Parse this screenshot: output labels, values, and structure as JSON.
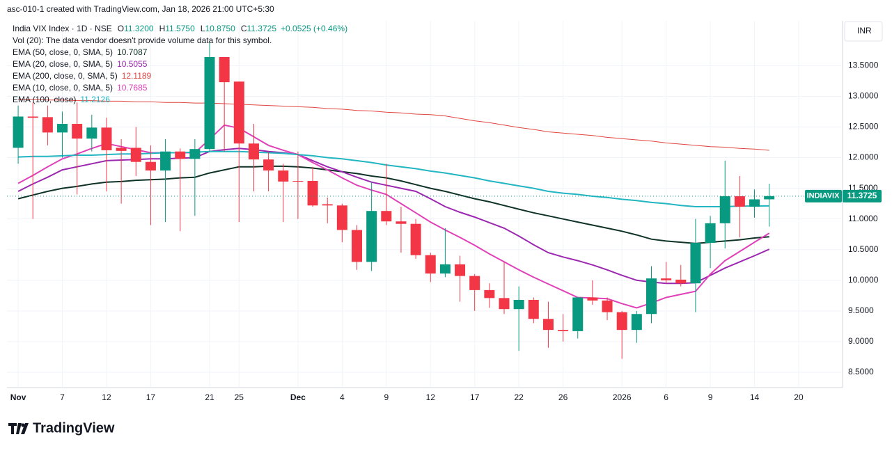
{
  "chart_data": {
    "type": "candlestick",
    "watermark": "asc-010-1 created with TradingView.com, Jan 18, 2026 21:00 UTC+5:30",
    "symbol": "India VIX Index · 1D · NSE",
    "quote": [
      {
        "label": "O",
        "value": "11.3200"
      },
      {
        "label": "H",
        "value": "11.5750"
      },
      {
        "label": "L",
        "value": "10.8750"
      },
      {
        "label": "C",
        "value": "11.3725"
      }
    ],
    "change": "+0.0525 (+0.46%)",
    "volume_note": "Vol (20): The data vendor doesn't provide volume data for this symbol.",
    "currency": "INR",
    "ticker": "INDIAVIX",
    "last_label": "11.3725",
    "brand": "TradingView",
    "up_color": "#089981",
    "down_color": "#f23645",
    "xlim": [
      -0.76,
      55.98
    ],
    "xticks": [
      {
        "value": 0,
        "label": "Nov"
      },
      {
        "value": 3,
        "label": "7"
      },
      {
        "value": 6,
        "label": "12"
      },
      {
        "value": 9,
        "label": "17"
      },
      {
        "value": 13,
        "label": "21"
      },
      {
        "value": 15,
        "label": "25"
      },
      {
        "value": 19,
        "label": "Dec"
      },
      {
        "value": 22,
        "label": "4"
      },
      {
        "value": 25,
        "label": "9"
      },
      {
        "value": 28,
        "label": "12"
      },
      {
        "value": 31,
        "label": "17"
      },
      {
        "value": 34,
        "label": "22"
      },
      {
        "value": 37,
        "label": "26"
      },
      {
        "value": 41,
        "label": "2026"
      },
      {
        "value": 44,
        "label": "6"
      },
      {
        "value": 47,
        "label": "9"
      },
      {
        "value": 50,
        "label": "14"
      },
      {
        "value": 53,
        "label": "20"
      }
    ],
    "ylim": [
      8.25,
      14.23
    ],
    "yticks": [
      {
        "value": 8.5,
        "label": "8.5000"
      },
      {
        "value": 9,
        "label": "9.0000"
      },
      {
        "value": 9.5,
        "label": "9.5000"
      },
      {
        "value": 10,
        "label": "10.0000"
      },
      {
        "value": 10.5,
        "label": "10.5000"
      },
      {
        "value": 11,
        "label": "11.0000"
      },
      {
        "value": 11.5,
        "label": "11.5000"
      },
      {
        "value": 12,
        "label": "12.0000"
      },
      {
        "value": 12.5,
        "label": "12.5000"
      },
      {
        "value": 13,
        "label": "13.0000"
      },
      {
        "value": 13.5,
        "label": "13.5000"
      }
    ],
    "grid": true,
    "open": [
      12.16,
      12.67,
      12.66,
      12.41,
      12.55,
      12.31,
      12.49,
      12.16,
      12.16,
      11.93,
      11.79,
      12.1,
      11.98,
      12.14,
      13.64,
      13.24,
      12.23,
      11.97,
      11.79,
      11.62,
      11.62,
      11.24,
      11.22,
      10.82,
      10.3,
      11.13,
      10.96,
      10.92,
      10.41,
      10.11,
      10.26,
      10.07,
      9.84,
      9.71,
      9.53,
      9.68,
      9.37,
      9.19,
      9.17,
      9.72,
      9.67,
      9.48,
      9.19,
      9.45,
      10.03,
      10.01,
      9.95,
      10.61,
      10.93,
      11.37,
      11.2,
      11.32
    ],
    "high": [
      12.85,
      12.9,
      12.85,
      12.75,
      12.9,
      12.7,
      12.65,
      12.3,
      12.5,
      12.2,
      12.3,
      12.15,
      12.3,
      13.9,
      13.64,
      13.24,
      12.55,
      12.1,
      11.9,
      12.1,
      11.85,
      11.35,
      11.25,
      10.9,
      11.6,
      11.9,
      11.2,
      11.0,
      10.45,
      10.85,
      10.4,
      10.1,
      9.95,
      10.3,
      9.9,
      9.72,
      9.65,
      9.45,
      9.73,
      10.0,
      9.72,
      9.5,
      9.5,
      10.23,
      10.3,
      10.25,
      11.0,
      11.05,
      11.95,
      11.7,
      11.48,
      11.575
    ],
    "low": [
      11.9,
      11.0,
      12.2,
      12.0,
      11.4,
      12.1,
      11.45,
      11.25,
      11.7,
      10.9,
      10.95,
      10.8,
      11.05,
      12.1,
      12.1,
      10.95,
      11.45,
      11.45,
      10.95,
      11.0,
      11.2,
      10.93,
      10.62,
      10.17,
      10.15,
      10.9,
      10.45,
      10.35,
      9.97,
      10.05,
      9.65,
      9.5,
      9.55,
      9.45,
      8.85,
      9.3,
      8.9,
      9.0,
      9.05,
      9.6,
      9.35,
      8.72,
      8.98,
      9.3,
      9.95,
      9.9,
      9.48,
      10.2,
      10.52,
      10.7,
      11.02,
      10.875
    ],
    "close": [
      12.67,
      12.65,
      12.41,
      12.55,
      12.31,
      12.49,
      12.12,
      12.11,
      11.93,
      11.79,
      12.1,
      11.98,
      12.14,
      13.64,
      13.23,
      12.23,
      11.97,
      11.79,
      11.61,
      11.61,
      11.22,
      11.22,
      10.82,
      10.3,
      11.13,
      10.96,
      10.92,
      10.41,
      10.11,
      10.26,
      10.07,
      9.84,
      9.71,
      9.53,
      9.68,
      9.37,
      9.19,
      9.17,
      9.72,
      9.67,
      9.48,
      9.19,
      9.45,
      10.03,
      10.0,
      9.95,
      10.61,
      10.93,
      11.37,
      11.2,
      11.32,
      11.3725
    ],
    "series": [
      {
        "name": "EMA (50, close, 0, SMA, 5)",
        "legend_value": "10.7087",
        "color": "#0f3326",
        "width": 2,
        "values": [
          11.33,
          11.39,
          11.45,
          11.5,
          11.53,
          11.57,
          11.6,
          11.61,
          11.63,
          11.64,
          11.65,
          11.67,
          11.68,
          11.75,
          11.8,
          11.85,
          11.85,
          11.86,
          11.86,
          11.85,
          11.83,
          11.8,
          11.77,
          11.74,
          11.7,
          11.67,
          11.62,
          11.56,
          11.5,
          11.45,
          11.39,
          11.33,
          11.28,
          11.22,
          11.16,
          11.1,
          11.05,
          11.0,
          10.95,
          10.9,
          10.85,
          10.8,
          10.74,
          10.67,
          10.64,
          10.62,
          10.6,
          10.62,
          10.64,
          10.66,
          10.69,
          10.7087
        ]
      },
      {
        "name": "EMA (20, close, 0, SMA, 5)",
        "legend_value": "10.5055",
        "color": "#9c27b0",
        "width": 2,
        "values": [
          11.45,
          11.57,
          11.68,
          11.8,
          11.85,
          11.9,
          11.95,
          11.96,
          11.97,
          11.98,
          11.98,
          11.99,
          12.0,
          12.1,
          12.13,
          12.15,
          12.13,
          12.1,
          12.08,
          12.05,
          11.95,
          11.85,
          11.77,
          11.68,
          11.6,
          11.55,
          11.5,
          11.45,
          11.33,
          11.2,
          11.11,
          11.03,
          10.94,
          10.85,
          10.72,
          10.58,
          10.45,
          10.38,
          10.32,
          10.25,
          10.17,
          10.08,
          10.0,
          9.97,
          9.95,
          9.95,
          9.96,
          10.08,
          10.2,
          10.3,
          10.4,
          10.5055
        ]
      },
      {
        "name": "EMA (200, close, 0, SMA, 5)",
        "legend_value": "12.1189",
        "color": "#e0453f",
        "width": 1,
        "values": [
          12.95,
          12.95,
          12.94,
          12.94,
          12.93,
          12.93,
          12.92,
          12.92,
          12.91,
          12.91,
          12.9,
          12.9,
          12.89,
          12.89,
          12.88,
          12.87,
          12.86,
          12.85,
          12.84,
          12.83,
          12.82,
          12.8,
          12.79,
          12.77,
          12.76,
          12.74,
          12.73,
          12.71,
          12.7,
          12.68,
          12.64,
          12.6,
          12.57,
          12.53,
          12.49,
          12.46,
          12.42,
          12.4,
          12.38,
          12.36,
          12.33,
          12.31,
          12.29,
          12.27,
          12.24,
          12.22,
          12.2,
          12.18,
          12.17,
          12.15,
          12.14,
          12.1189
        ]
      },
      {
        "name": "EMA (10, close, 0, SMA, 5)",
        "legend_value": "10.7685",
        "color": "#e040b8",
        "width": 2,
        "values": [
          11.58,
          11.71,
          11.85,
          11.98,
          12.06,
          12.15,
          12.23,
          12.18,
          12.13,
          12.08,
          12.08,
          12.08,
          12.08,
          12.3,
          12.53,
          12.48,
          12.34,
          12.2,
          12.12,
          12.05,
          11.92,
          11.8,
          11.67,
          11.55,
          11.47,
          11.4,
          11.25,
          11.1,
          10.95,
          10.82,
          10.7,
          10.57,
          10.43,
          10.3,
          10.17,
          10.05,
          9.94,
          9.83,
          9.72,
          9.71,
          9.7,
          9.62,
          9.55,
          9.63,
          9.72,
          9.77,
          9.82,
          10.1,
          10.32,
          10.47,
          10.62,
          10.7685
        ]
      },
      {
        "name": "EMA (100, close)",
        "legend_value": "11.2126",
        "color": "#22b5c2",
        "width": 2,
        "values": [
          12.01,
          12.02,
          12.02,
          12.03,
          12.04,
          12.04,
          12.05,
          12.06,
          12.06,
          12.07,
          12.08,
          12.08,
          12.09,
          12.1,
          12.1,
          12.1,
          12.09,
          12.08,
          12.07,
          12.05,
          12.03,
          12.0,
          11.98,
          11.95,
          11.92,
          11.88,
          11.85,
          11.82,
          11.78,
          11.75,
          11.71,
          11.67,
          11.62,
          11.58,
          11.54,
          11.5,
          11.45,
          11.42,
          11.4,
          11.37,
          11.35,
          11.32,
          11.3,
          11.27,
          11.25,
          11.22,
          11.2,
          11.2,
          11.2,
          11.21,
          11.21,
          11.2126
        ]
      }
    ]
  }
}
